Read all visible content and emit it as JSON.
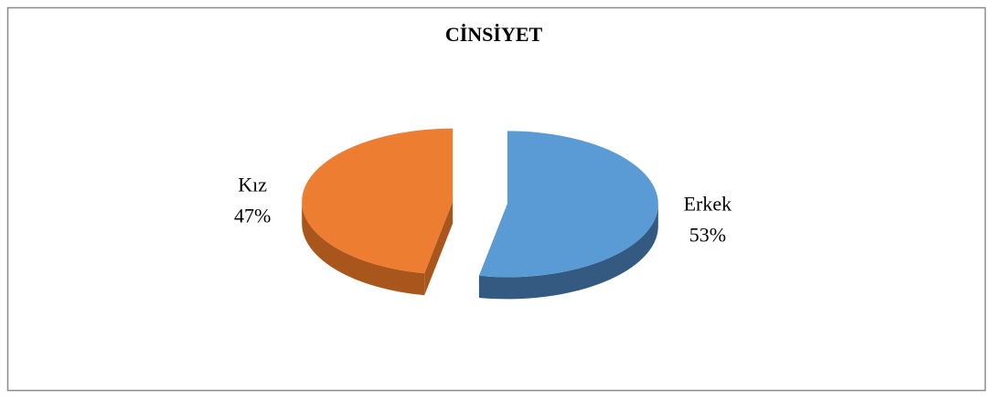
{
  "chart_data": {
    "type": "pie",
    "title": "CİNSİYET",
    "categories": [
      "Erkek",
      "Kız"
    ],
    "values": [
      53,
      47
    ],
    "value_labels": [
      "53%",
      "47%"
    ],
    "colors": [
      "#5b9bd5",
      "#ed7d31"
    ],
    "side_colors": [
      "#345a82",
      "#a9561d"
    ]
  }
}
